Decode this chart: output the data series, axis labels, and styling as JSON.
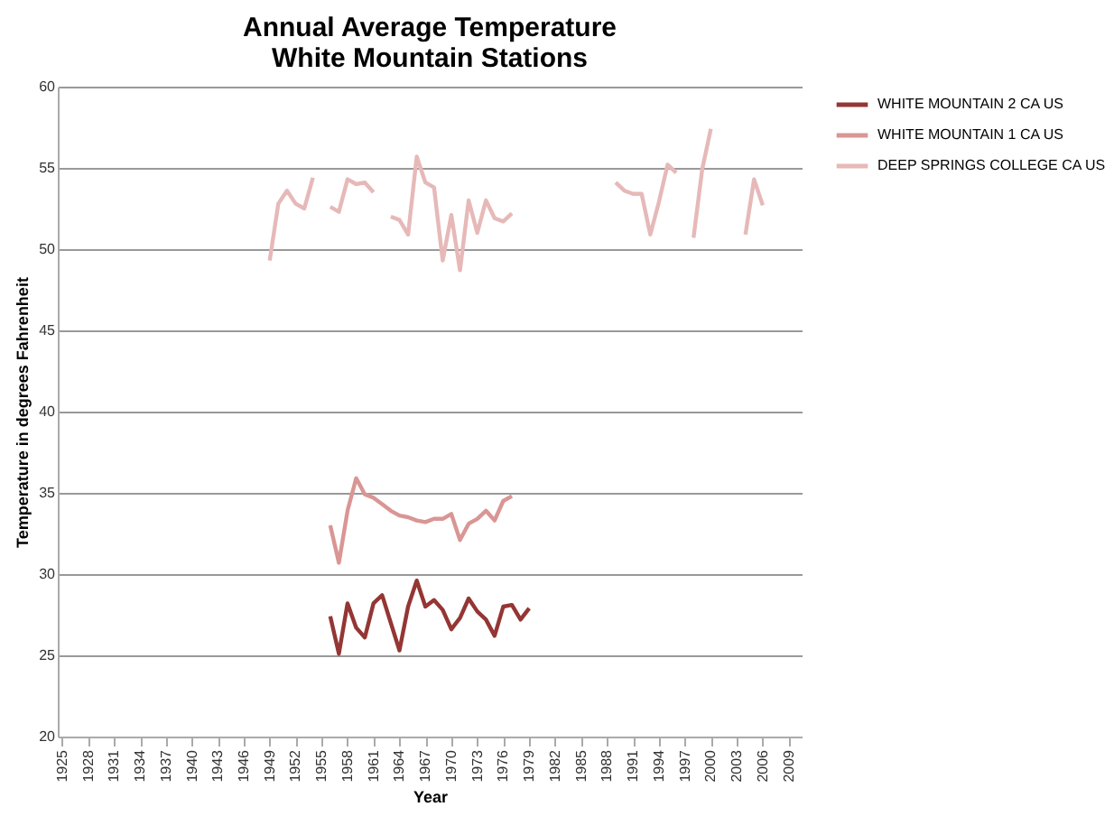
{
  "chart_data": {
    "type": "line",
    "title": [
      "Annual Average Temperature",
      "White Mountain Stations"
    ],
    "xlabel": "Year",
    "ylabel": "Temperature in degrees Fahrenheit",
    "xlim": [
      1924.5,
      2010.5
    ],
    "xticks": [
      1925,
      1928,
      1931,
      1934,
      1937,
      1940,
      1943,
      1946,
      1949,
      1952,
      1955,
      1958,
      1961,
      1964,
      1967,
      1970,
      1973,
      1976,
      1979,
      1982,
      1985,
      1988,
      1991,
      1994,
      1997,
      2000,
      2003,
      2006,
      2009
    ],
    "ylim": [
      20,
      60
    ],
    "yticks": [
      20,
      25,
      30,
      35,
      40,
      45,
      50,
      55,
      60
    ],
    "grid": "y",
    "legend": "right",
    "marker": "none",
    "line_style": "solid",
    "series": [
      {
        "name": "WHITE MOUNTAIN 2 CA US",
        "color": "#943634",
        "x": [
          1956,
          1957,
          1958,
          1959,
          1960,
          1961,
          1962,
          1963,
          1964,
          1965,
          1966,
          1967,
          1968,
          1969,
          1970,
          1971,
          1972,
          1973,
          1974,
          1975,
          1976,
          1977,
          1978,
          1979
        ],
        "values": [
          27.4,
          25.1,
          28.2,
          26.7,
          26.1,
          28.2,
          28.7,
          27.0,
          25.3,
          28.0,
          29.6,
          28.0,
          28.4,
          27.8,
          26.6,
          27.3,
          28.5,
          27.7,
          27.2,
          26.2,
          28.0,
          28.1,
          27.2,
          27.9
        ]
      },
      {
        "name": "WHITE MOUNTAIN 1 CA US",
        "color": "#d99694",
        "x": [
          1956,
          1957,
          1958,
          1959,
          1960,
          1961,
          1962,
          1963,
          1964,
          1965,
          1966,
          1967,
          1968,
          1969,
          1970,
          1971,
          1972,
          1973,
          1974,
          1975,
          1976,
          1977
        ],
        "values": [
          33.0,
          30.7,
          33.9,
          35.9,
          34.9,
          34.7,
          34.3,
          33.9,
          33.6,
          33.5,
          33.3,
          33.2,
          33.4,
          33.4,
          33.7,
          32.1,
          33.1,
          33.4,
          33.9,
          33.3,
          34.5,
          34.8
        ]
      },
      {
        "name": "DEEP SPRINGS COLLEGE CA US",
        "color": "#e6b9b8",
        "x": [
          1949,
          1950,
          1951,
          1952,
          1953,
          1954,
          1955,
          1956,
          1957,
          1958,
          1959,
          1960,
          1961,
          1962,
          1963,
          1964,
          1965,
          1966,
          1967,
          1968,
          1969,
          1970,
          1971,
          1972,
          1973,
          1974,
          1975,
          1976,
          1977,
          1978,
          1979,
          1980,
          1981,
          1982,
          1983,
          1984,
          1985,
          1986,
          1987,
          1988,
          1989,
          1990,
          1991,
          1992,
          1993,
          1994,
          1995,
          1996,
          1997,
          1998,
          1999,
          2000,
          2001,
          2002,
          2003,
          2004,
          2005,
          2006
        ],
        "values": [
          49.3,
          52.8,
          53.6,
          52.8,
          52.5,
          54.4,
          null,
          52.6,
          52.3,
          54.3,
          54.0,
          54.1,
          53.5,
          null,
          52.0,
          51.8,
          50.9,
          55.7,
          54.1,
          53.8,
          49.3,
          52.1,
          48.7,
          53.0,
          51.0,
          53.0,
          51.9,
          51.7,
          52.2,
          null,
          null,
          null,
          null,
          null,
          null,
          null,
          null,
          null,
          null,
          null,
          54.1,
          53.6,
          53.4,
          53.4,
          50.9,
          52.9,
          55.2,
          54.7,
          null,
          50.7,
          54.9,
          57.4,
          null,
          null,
          null,
          50.9,
          54.3,
          52.7
        ]
      }
    ]
  }
}
